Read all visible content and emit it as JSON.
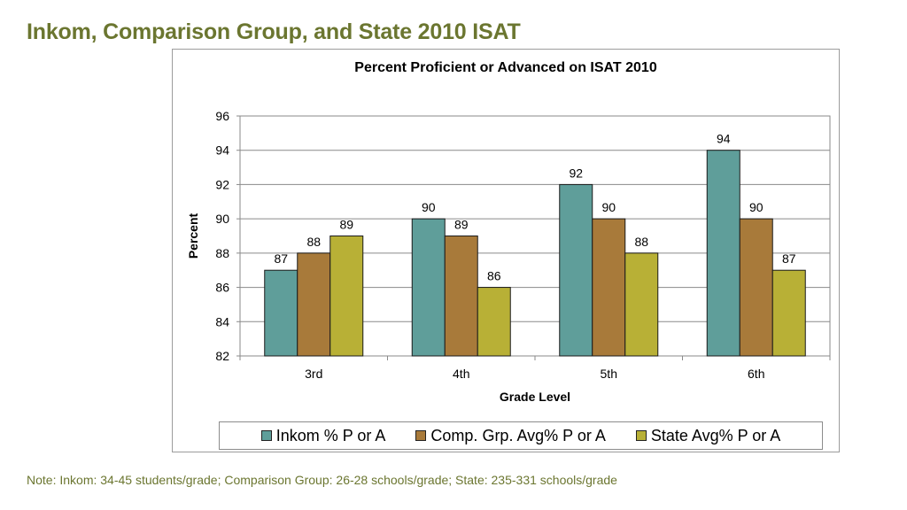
{
  "page": {
    "title": "Inkom, Comparison Group, and State 2010 ISAT",
    "note": "Note: Inkom:  34-45 students/grade; Comparison Group: 26-28 schools/grade; State:  235-331 schools/grade"
  },
  "colors": {
    "title": "#6b7630",
    "series": [
      "#5f9e9a",
      "#a87a3a",
      "#b8b036"
    ]
  },
  "chart_data": {
    "type": "bar",
    "title": "Percent Proficient or Advanced on ISAT 2010",
    "xlabel": "Grade Level",
    "ylabel": "Percent",
    "categories": [
      "3rd",
      "4th",
      "5th",
      "6th"
    ],
    "ylim": [
      82,
      96
    ],
    "yticks": [
      "82",
      "84",
      "86",
      "88",
      "90",
      "92",
      "94",
      "96"
    ],
    "grid": true,
    "legend_position": "bottom",
    "series": [
      {
        "name": "Inkom % P or A",
        "values": [
          87,
          90,
          92,
          94
        ]
      },
      {
        "name": "Comp. Grp. Avg% P or A",
        "values": [
          88,
          89,
          90,
          90
        ]
      },
      {
        "name": "State Avg% P or A",
        "values": [
          89,
          86,
          88,
          87
        ]
      }
    ]
  }
}
